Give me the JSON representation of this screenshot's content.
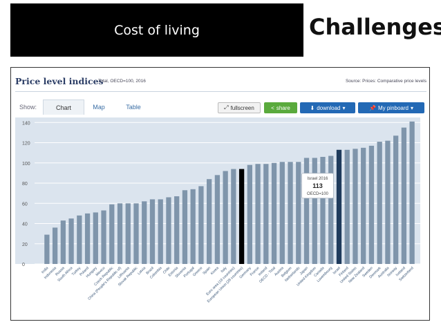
{
  "slide": {
    "title": "Cost of living",
    "headline": "Challenges"
  },
  "widget": {
    "title": "Price level indices",
    "subtitle": "Total, OECD=100, 2016",
    "source": "Source: Prices: Comparative price levels",
    "show_label": "Show:",
    "tabs": [
      "Chart",
      "Map",
      "Table"
    ],
    "buttons": {
      "fullscreen": "fullscreen",
      "share": "share",
      "download": "download",
      "pinboard": "My pinboard"
    }
  },
  "chart_data": {
    "type": "bar",
    "title": "Price level indices",
    "ylim": [
      0,
      145
    ],
    "yticks": [
      0,
      20,
      40,
      60,
      80,
      100,
      120,
      140
    ],
    "grid": true,
    "categories": [
      "India",
      "Indonesia",
      "Russia",
      "South Africa",
      "Turkey",
      "Poland",
      "Hungary",
      "Mexico",
      "Czech Republic",
      "China (People's Republic of)",
      "Lithuania",
      "Slovak Republic",
      "Latvia",
      "Brazil",
      "Colombia",
      "Chile",
      "Estonia",
      "Slovenia",
      "Portugal",
      "Greece",
      "Spain",
      "Korea",
      "Italy",
      "Euro area (19 countries)",
      "European Union (28 countries)",
      "Germany",
      "France",
      "Ireland",
      "OECD - Total",
      "Austria",
      "Belgium",
      "Netherlands",
      "Japan",
      "United Kingdom",
      "Canada",
      "Luxembourg",
      "Israel",
      "Finland",
      "United States",
      "New Zealand",
      "Sweden",
      "Denmark",
      "Australia",
      "Norway",
      "Iceland",
      "Switzerland"
    ],
    "values": [
      29,
      36,
      43,
      45,
      48,
      50,
      51,
      53,
      59,
      60,
      60,
      60,
      62,
      64,
      64,
      66,
      67,
      73,
      74,
      77,
      84,
      88,
      92,
      94,
      94,
      98,
      99,
      99,
      100,
      101,
      101,
      101,
      105,
      105,
      106,
      107,
      113,
      113,
      114,
      115,
      117,
      121,
      122,
      127,
      135,
      141
    ],
    "highlighted": [
      "European Union (28 countries)",
      "Israel"
    ],
    "colors": {
      "bar": "#7f95ab",
      "highlight_dark": "#000000",
      "highlight_selected": "#1f3b5c",
      "plot_bg": "#dbe4ee",
      "grid": "#ffffff"
    },
    "tooltip": {
      "label": "Israel 2016",
      "value": "113",
      "note": "OECD=100"
    }
  }
}
